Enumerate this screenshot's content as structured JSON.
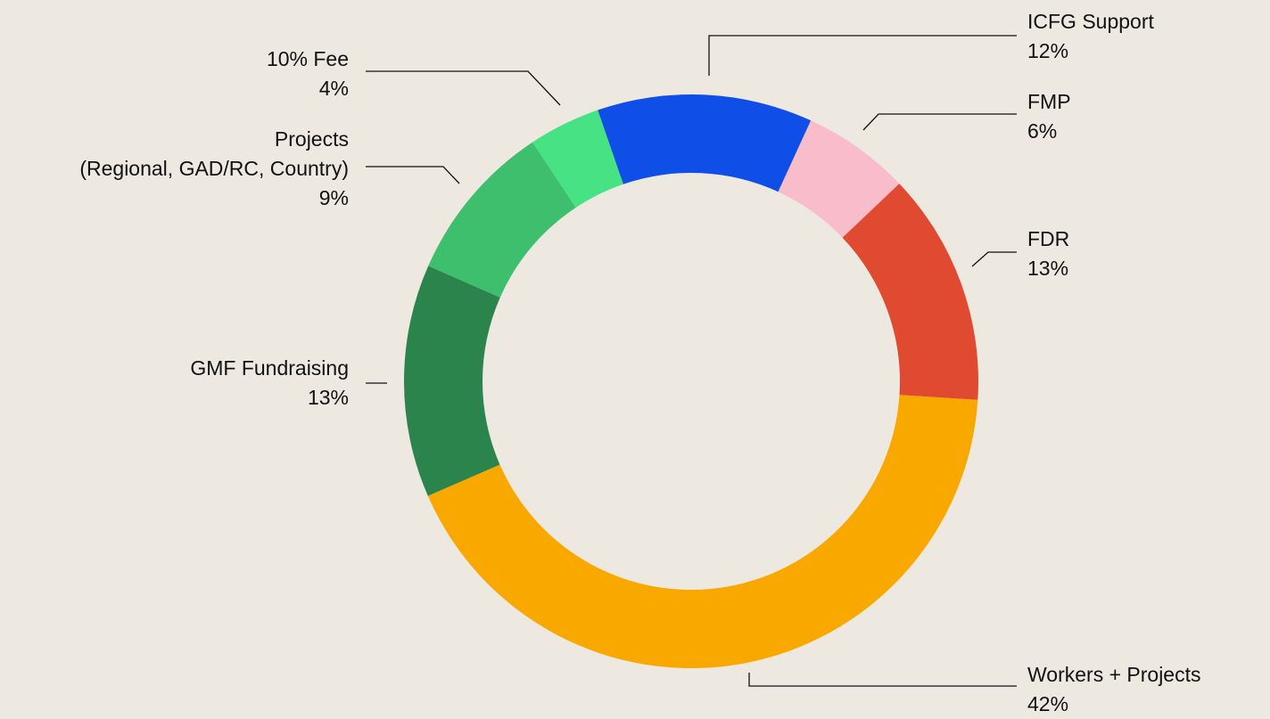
{
  "chart_data": {
    "type": "donut",
    "categories": [
      "ICFG Support",
      "FMP",
      "FDR",
      "Workers + Projects",
      "GMF Fundraising",
      "Projects\n(Regional, GAD/RC, Country)",
      "10% Fee"
    ],
    "values": [
      12,
      6,
      13,
      42,
      13,
      9,
      4
    ],
    "value_labels": [
      "12%",
      "6%",
      "13%",
      "42%",
      "13%",
      "9%",
      "4%"
    ],
    "colors": [
      "#0f4fe8",
      "#f9bccb",
      "#e04a30",
      "#f9a800",
      "#2b844c",
      "#3dbf6e",
      "#47e283"
    ]
  }
}
